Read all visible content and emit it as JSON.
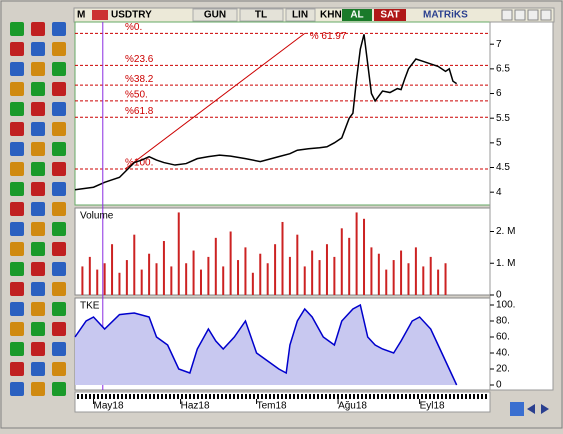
{
  "toolbar": {
    "menu": "M",
    "symbol": "USDTRY",
    "period": "GUN",
    "currency": "TL",
    "scale": "LIN",
    "khn": "KHN",
    "buy": "AL",
    "sell": "SAT",
    "brand": "MATRiKS"
  },
  "chart_data": [
    {
      "type": "line",
      "x": [
        0,
        3,
        5,
        8,
        10,
        12,
        14,
        16,
        18,
        20,
        22,
        24,
        27,
        30,
        33,
        36,
        39,
        42,
        46,
        50,
        53,
        55,
        58,
        60,
        63,
        66,
        68,
        70,
        72,
        73,
        74,
        75,
        76,
        77,
        78,
        79,
        80,
        81,
        83,
        85,
        87,
        88,
        89,
        90,
        91,
        92,
        94,
        96,
        98,
        100,
        101,
        102,
        103
      ],
      "values": [
        4.05,
        4.08,
        4.1,
        4.2,
        4.25,
        4.3,
        4.45,
        4.6,
        4.65,
        4.72,
        4.65,
        4.6,
        4.55,
        4.58,
        4.68,
        4.72,
        4.75,
        4.73,
        4.68,
        4.62,
        4.68,
        4.72,
        4.78,
        4.85,
        4.88,
        4.9,
        4.92,
        5.0,
        5.1,
        5.3,
        5.5,
        5.6,
        6.3,
        6.9,
        7.2,
        6.6,
        6.0,
        5.85,
        6.05,
        6.02,
        6.1,
        6.08,
        6.3,
        6.5,
        6.6,
        6.7,
        6.65,
        6.6,
        6.55,
        6.45,
        6.5,
        6.25,
        6.2
      ],
      "color": "#000000",
      "xlim": [
        0,
        112
      ],
      "ylim": [
        3.74,
        7.45
      ],
      "yticks": [
        4,
        4.5,
        5,
        5.5,
        6,
        6.5,
        7
      ],
      "levels": [
        {
          "label": "%0.",
          "value": 7.22
        },
        {
          "label": "%23.6",
          "value": 6.57
        },
        {
          "label": "%38.2",
          "value": 6.17
        },
        {
          "label": "%50.",
          "value": 5.85
        },
        {
          "label": "%61.8",
          "value": 5.52
        },
        {
          "label": "%100.",
          "value": 4.47
        }
      ],
      "trendline": {
        "label": "% 61.97",
        "x": [
          13.5,
          62
        ],
        "values": [
          4.47,
          7.22
        ]
      },
      "cursor_x": 7.5
    },
    {
      "type": "bar",
      "title": "Volume",
      "color": "#cc2222",
      "xlim": [
        0,
        112
      ],
      "ylim": [
        0,
        2740000
      ],
      "x": [
        2,
        4,
        6,
        8,
        10,
        12,
        14,
        16,
        18,
        20,
        22,
        24,
        26,
        28,
        30,
        32,
        34,
        36,
        38,
        40,
        42,
        44,
        46,
        48,
        50,
        52,
        54,
        56,
        58,
        60,
        62,
        64,
        66,
        68,
        70,
        72,
        74,
        76,
        78,
        80,
        82,
        84,
        86,
        88,
        90,
        92,
        94,
        96,
        98,
        100
      ],
      "values": [
        900000,
        1200000,
        800000,
        1000000,
        1600000,
        700000,
        1100000,
        1900000,
        800000,
        1300000,
        1000000,
        1700000,
        900000,
        2600000,
        1000000,
        1400000,
        800000,
        1200000,
        1800000,
        900000,
        2000000,
        1100000,
        1500000,
        700000,
        1300000,
        1000000,
        1600000,
        2300000,
        1200000,
        1900000,
        900000,
        1400000,
        1100000,
        1600000,
        1200000,
        2100000,
        1800000,
        2600000,
        2400000,
        1500000,
        1300000,
        800000,
        1100000,
        1400000,
        1000000,
        1500000,
        900000,
        1200000,
        800000,
        1000000
      ],
      "yticks": [
        {
          "value": 2000000,
          "label": "2. M"
        },
        {
          "value": 1000000,
          "label": "1. M"
        },
        0
      ]
    },
    {
      "type": "area",
      "title": "TKE",
      "color": "#0000cc",
      "fill": "#c8c8f0",
      "xlim": [
        0,
        112
      ],
      "ylim": [
        -6.25,
        108.75
      ],
      "x": [
        0,
        3,
        5,
        8,
        12,
        16,
        20,
        22,
        25,
        28,
        31,
        33,
        36,
        38,
        40,
        43,
        46,
        49,
        52,
        55,
        57,
        58,
        60,
        62,
        64,
        67,
        70,
        72,
        75,
        77,
        79,
        81,
        83,
        86,
        88,
        91,
        93,
        96,
        99,
        102,
        103
      ],
      "values": [
        60,
        80,
        85,
        70,
        88,
        90,
        85,
        60,
        50,
        20,
        15,
        45,
        70,
        55,
        45,
        60,
        80,
        40,
        30,
        20,
        15,
        50,
        80,
        95,
        85,
        60,
        50,
        80,
        95,
        100,
        60,
        50,
        45,
        40,
        55,
        80,
        85,
        70,
        40,
        10,
        0
      ],
      "yticks": [
        {
          "value": 100,
          "label": "100."
        },
        {
          "value": 80,
          "label": "80."
        },
        {
          "value": 60,
          "label": "60."
        },
        {
          "value": 40,
          "label": "40."
        },
        {
          "value": 20,
          "label": "20."
        },
        0
      ],
      "xticks": [
        {
          "value": 5,
          "label": "May18"
        },
        {
          "value": 28.5,
          "label": "Haz18"
        },
        {
          "value": 49,
          "label": "Tem18"
        },
        {
          "value": 71,
          "label": "Ağu18"
        },
        {
          "value": 93,
          "label": "Eyl18"
        }
      ]
    }
  ]
}
